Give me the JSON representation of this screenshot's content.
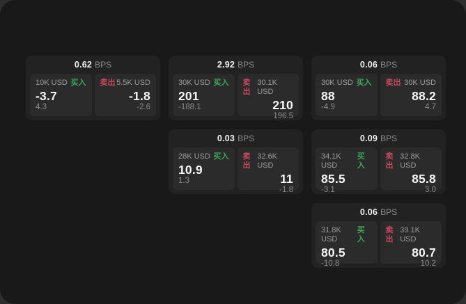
{
  "page": {
    "bg_outer": "#2e2e2e",
    "bg_window": "#191919",
    "card_bg": "#222222",
    "panel_bg": "#2b2b2b"
  },
  "labels": {
    "bps_unit": "BPS",
    "buy": "买入",
    "sell": "卖出"
  },
  "colors": {
    "buy": "#3ca65a",
    "sell": "#c8485f"
  },
  "cards": [
    {
      "col": 0,
      "row": 0,
      "bps": "0.62",
      "buy": {
        "amount": "10K USD",
        "value": "-3.7",
        "sub": "4.3"
      },
      "sell": {
        "amount": "5.5K USD",
        "value": "-1.8",
        "sub": "-2.6"
      }
    },
    {
      "col": 1,
      "row": 0,
      "bps": "2.92",
      "buy": {
        "amount": "30K USD",
        "value": "201",
        "sub": "-188.1"
      },
      "sell": {
        "amount": "30.1K USD",
        "value": "210",
        "sub": "196.5"
      }
    },
    {
      "col": 2,
      "row": 0,
      "bps": "0.06",
      "buy": {
        "amount": "30K USD",
        "value": "88",
        "sub": "-4.9"
      },
      "sell": {
        "amount": "30K USD",
        "value": "88.2",
        "sub": "4.7"
      }
    },
    {
      "col": 1,
      "row": 1,
      "bps": "0.03",
      "buy": {
        "amount": "28K USD",
        "value": "10.9",
        "sub": "1.3"
      },
      "sell": {
        "amount": "32.6K USD",
        "value": "11",
        "sub": "-1.8"
      }
    },
    {
      "col": 2,
      "row": 1,
      "bps": "0.09",
      "buy": {
        "amount": "34.1K USD",
        "value": "85.5",
        "sub": "-3.1"
      },
      "sell": {
        "amount": "32.8K USD",
        "value": "85.8",
        "sub": "3.0"
      }
    },
    {
      "col": 2,
      "row": 2,
      "bps": "0.06",
      "buy": {
        "amount": "31.8K USD",
        "value": "80.5",
        "sub": "-10.8"
      },
      "sell": {
        "amount": "39.1K USD",
        "value": "80.7",
        "sub": "10.2"
      }
    }
  ]
}
